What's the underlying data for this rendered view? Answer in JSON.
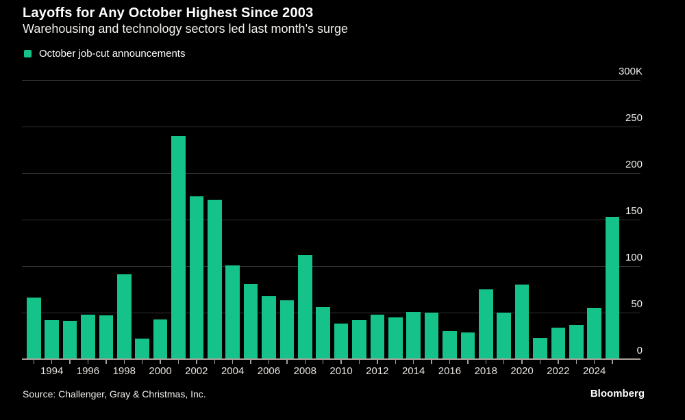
{
  "header": {
    "title": "Layoffs for Any October Highest Since 2003",
    "subtitle": "Warehousing and technology sectors led last month's surge"
  },
  "legend": {
    "label": "October job-cut announcements"
  },
  "footer": {
    "source": "Source: Challenger, Gray & Christmas, Inc.",
    "brand": "Bloomberg"
  },
  "colors": {
    "background": "#000000",
    "bar": "#14c28a",
    "gridline": "#343434",
    "axis": "#aba49e",
    "tick": "#a39c96",
    "title_text": "#ffffff",
    "axis_label_text": "#e8e3de"
  },
  "chart_data": {
    "type": "bar",
    "title": "Layoffs for Any October Highest Since 2003",
    "subtitle": "Warehousing and technology sectors led last month's surge",
    "series_name": "October job-cut announcements",
    "unit": "thousands of announced job cuts",
    "categories": [
      1993,
      1994,
      1995,
      1996,
      1997,
      1998,
      1999,
      2000,
      2001,
      2002,
      2003,
      2004,
      2005,
      2006,
      2007,
      2008,
      2009,
      2010,
      2011,
      2012,
      2013,
      2014,
      2015,
      2016,
      2017,
      2018,
      2019,
      2020,
      2021,
      2022,
      2023,
      2024,
      2025
    ],
    "values": [
      66,
      42,
      41,
      48,
      47,
      91,
      22,
      43,
      240,
      175,
      171,
      101,
      81,
      68,
      63,
      112,
      56,
      38,
      42,
      48,
      45,
      51,
      50,
      30,
      29,
      75,
      50,
      80,
      23,
      34,
      37,
      55,
      153
    ],
    "ylim": [
      0,
      300
    ],
    "y_ticks": [
      {
        "value": 300,
        "label": "300K"
      },
      {
        "value": 250,
        "label": "250"
      },
      {
        "value": 200,
        "label": "200"
      },
      {
        "value": 150,
        "label": "150"
      },
      {
        "value": 100,
        "label": "100"
      },
      {
        "value": 50,
        "label": "50"
      },
      {
        "value": 0,
        "label": "0"
      }
    ],
    "x_tick_labels": [
      "1994",
      "1996",
      "1998",
      "2000",
      "2002",
      "2004",
      "2006",
      "2008",
      "2010",
      "2012",
      "2014",
      "2016",
      "2018",
      "2020",
      "2022",
      "2024"
    ],
    "grid": true,
    "legend_position": "top-left",
    "bar_color": "#14c28a",
    "source": "Source: Challenger, Gray & Christmas, Inc.",
    "credit": "Bloomberg"
  }
}
